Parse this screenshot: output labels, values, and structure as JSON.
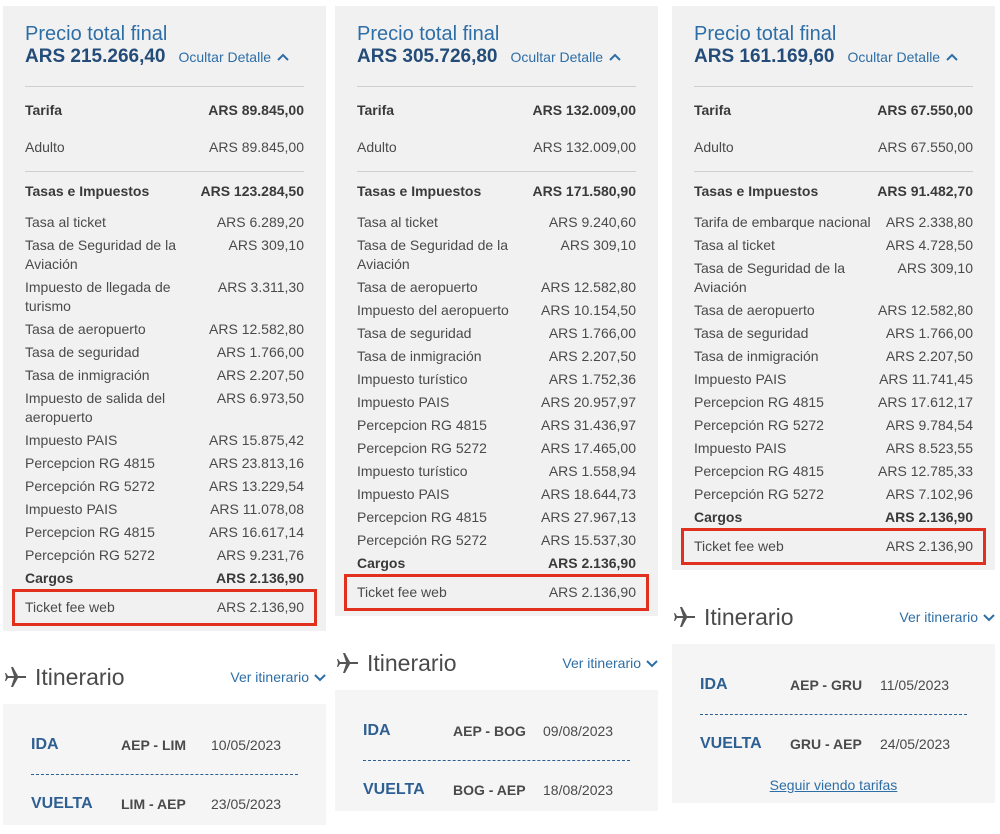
{
  "columns": [
    {
      "price": {
        "title": "Precio total final",
        "total": "ARS 215.266,40",
        "toggle": "Ocultar Detalle",
        "sections": [
          {
            "label": "Tarifa",
            "value": "ARS 89.845,00",
            "items": [
              {
                "label": "Adulto",
                "value": "ARS 89.845,00"
              }
            ]
          },
          {
            "label": "Tasas e Impuestos",
            "value": "ARS 123.284,50",
            "items": [
              {
                "label": "Tasa al ticket",
                "value": "ARS 6.289,20"
              },
              {
                "label": "Tasa de Seguridad de la Aviación",
                "value": "ARS 309,10"
              },
              {
                "label": "Impuesto de llegada de turismo",
                "value": "ARS 3.311,30"
              },
              {
                "label": "Tasa de aeropuerto",
                "value": "ARS 12.582,80"
              },
              {
                "label": "Tasa de seguridad",
                "value": "ARS 1.766,00"
              },
              {
                "label": "Tasa de inmigración",
                "value": "ARS 2.207,50"
              },
              {
                "label": "Impuesto de salida del aeropuerto",
                "value": "ARS 6.973,50"
              },
              {
                "label": "Impuesto PAIS",
                "value": "ARS 15.875,42"
              },
              {
                "label": "Percepcion RG 4815",
                "value": "ARS 23.813,16"
              },
              {
                "label": "Percepción RG 5272",
                "value": "ARS 13.229,54"
              },
              {
                "label": "Impuesto PAIS",
                "value": "ARS 11.078,08"
              },
              {
                "label": "Percepcion RG 4815",
                "value": "ARS 16.617,14"
              },
              {
                "label": "Percepción RG 5272",
                "value": "ARS 9.231,76"
              }
            ]
          },
          {
            "label": "Cargos",
            "value": "ARS 2.136,90",
            "items": [
              {
                "label": "Ticket fee web",
                "value": "ARS 2.136,90",
                "highlighted": true
              }
            ]
          }
        ]
      },
      "itinerary": {
        "title": "Itinerario",
        "link": "Ver itinerario",
        "legs": [
          {
            "label": "IDA",
            "route": "AEP - LIM",
            "date": "10/05/2023"
          },
          {
            "label": "VUELTA",
            "route": "LIM - AEP",
            "date": "23/05/2023"
          }
        ]
      }
    },
    {
      "price": {
        "title": "Precio total final",
        "total": "ARS 305.726,80",
        "toggle": "Ocultar Detalle",
        "sections": [
          {
            "label": "Tarifa",
            "value": "ARS 132.009,00",
            "items": [
              {
                "label": "Adulto",
                "value": "ARS 132.009,00"
              }
            ]
          },
          {
            "label": "Tasas e Impuestos",
            "value": "ARS 171.580,90",
            "items": [
              {
                "label": "Tasa al ticket",
                "value": "ARS 9.240,60"
              },
              {
                "label": "Tasa de Seguridad de la Aviación",
                "value": "ARS 309,10"
              },
              {
                "label": "Tasa de aeropuerto",
                "value": "ARS 12.582,80"
              },
              {
                "label": "Impuesto del aeropuerto",
                "value": "ARS 10.154,50"
              },
              {
                "label": "Tasa de seguridad",
                "value": "ARS 1.766,00"
              },
              {
                "label": "Tasa de inmigración",
                "value": "ARS 2.207,50"
              },
              {
                "label": "Impuesto turístico",
                "value": "ARS 1.752,36"
              },
              {
                "label": "Impuesto PAIS",
                "value": "ARS 20.957,97"
              },
              {
                "label": "Percepcion RG 4815",
                "value": "ARS 31.436,97"
              },
              {
                "label": "Percepcion RG 5272",
                "value": "ARS 17.465,00"
              },
              {
                "label": "Impuesto turístico",
                "value": "ARS 1.558,94"
              },
              {
                "label": "Impuesto PAIS",
                "value": "ARS 18.644,73"
              },
              {
                "label": "Percepcion RG 4815",
                "value": "ARS 27.967,13"
              },
              {
                "label": "Percepción RG 5272",
                "value": "ARS 15.537,30"
              }
            ]
          },
          {
            "label": "Cargos",
            "value": "ARS 2.136,90",
            "items": [
              {
                "label": "Ticket fee web",
                "value": "ARS 2.136,90",
                "highlighted": true
              }
            ]
          }
        ]
      },
      "itinerary": {
        "title": "Itinerario",
        "link": "Ver itinerario",
        "legs": [
          {
            "label": "IDA",
            "route": "AEP - BOG",
            "date": "09/08/2023"
          },
          {
            "label": "VUELTA",
            "route": "BOG - AEP",
            "date": "18/08/2023"
          }
        ]
      }
    },
    {
      "price": {
        "title": "Precio total final",
        "total": "ARS 161.169,60",
        "toggle": "Ocultar Detalle",
        "sections": [
          {
            "label": "Tarifa",
            "value": "ARS 67.550,00",
            "items": [
              {
                "label": "Adulto",
                "value": "ARS 67.550,00"
              }
            ]
          },
          {
            "label": "Tasas e Impuestos",
            "value": "ARS 91.482,70",
            "items": [
              {
                "label": "Tarifa de embarque nacional",
                "value": "ARS 2.338,80"
              },
              {
                "label": "Tasa al ticket",
                "value": "ARS 4.728,50"
              },
              {
                "label": "Tasa de Seguridad de la Aviación",
                "value": "ARS 309,10"
              },
              {
                "label": "Tasa de aeropuerto",
                "value": "ARS 12.582,80"
              },
              {
                "label": "Tasa de seguridad",
                "value": "ARS 1.766,00"
              },
              {
                "label": "Tasa de inmigración",
                "value": "ARS 2.207,50"
              },
              {
                "label": "Impuesto PAIS",
                "value": "ARS 11.741,45"
              },
              {
                "label": "Percepcion RG 4815",
                "value": "ARS 17.612,17"
              },
              {
                "label": "Percepción RG 5272",
                "value": "ARS 9.784,54"
              },
              {
                "label": "Impuesto PAIS",
                "value": "ARS 8.523,55"
              },
              {
                "label": "Percepcion RG 4815",
                "value": "ARS 12.785,33"
              },
              {
                "label": "Percepción RG 5272",
                "value": "ARS 7.102,96"
              }
            ]
          },
          {
            "label": "Cargos",
            "value": "ARS 2.136,90",
            "items": [
              {
                "label": "Ticket fee web",
                "value": "ARS 2.136,90",
                "highlighted": true
              }
            ]
          }
        ]
      },
      "itinerary": {
        "title": "Itinerario",
        "link": "Ver itinerario",
        "legs": [
          {
            "label": "IDA",
            "route": "AEP - GRU",
            "date": "11/05/2023"
          },
          {
            "label": "VUELTA",
            "route": "GRU - AEP",
            "date": "24/05/2023"
          }
        ],
        "more_link": "Seguir viendo tarifas"
      }
    }
  ]
}
